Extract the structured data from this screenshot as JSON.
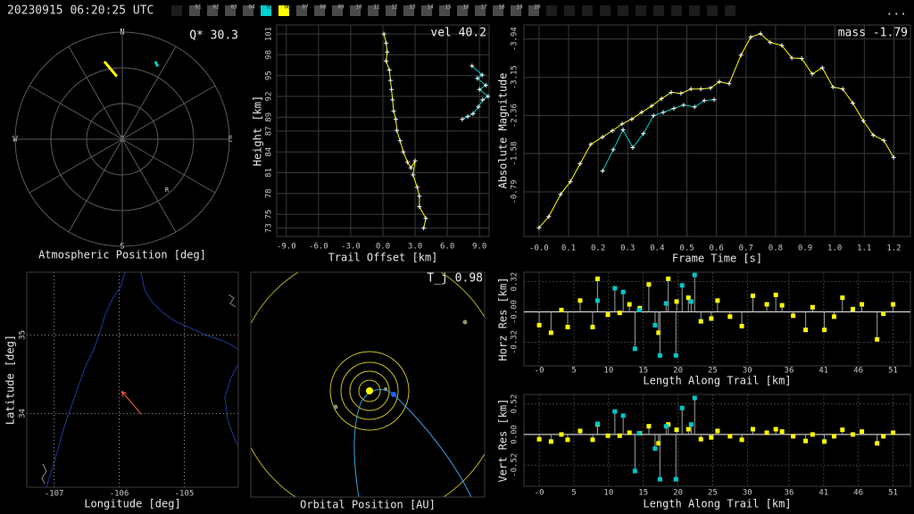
{
  "header": {
    "timestamp": "20230915 06:20:25 UTC",
    "menu": "...",
    "stations": [
      {
        "label": "01"
      },
      {
        "label": "02"
      },
      {
        "label": "03"
      },
      {
        "label": "04"
      },
      {
        "label": "05",
        "color": "#00d0d0"
      },
      {
        "label": "06",
        "color": "#ffff00"
      },
      {
        "label": "07"
      },
      {
        "label": "08"
      },
      {
        "label": "09"
      },
      {
        "label": "10"
      },
      {
        "label": "11"
      },
      {
        "label": "12"
      },
      {
        "label": "13"
      },
      {
        "label": "14"
      },
      {
        "label": "15"
      },
      {
        "label": "16"
      },
      {
        "label": "17"
      },
      {
        "label": "18"
      },
      {
        "label": "19"
      },
      {
        "label": "20"
      }
    ]
  },
  "chart_data": [
    {
      "type": "polar",
      "xlabel": "Atmospheric Position [deg]",
      "annotation": "Q* 30.3",
      "direction_labels": [
        "N",
        "E",
        "S",
        "W"
      ],
      "center_label": "Z",
      "marker_label": "R",
      "rlim": [
        0,
        90
      ],
      "rticks": [
        30,
        60,
        90
      ],
      "series": [
        {
          "color": "#ffff00",
          "azimuth": [
            347,
            355
          ],
          "zenith": [
            67,
            53
          ]
        },
        {
          "color": "#00d0d0",
          "azimuth": [
            23,
            26
          ],
          "zenith": [
            71,
            68
          ]
        }
      ]
    },
    {
      "type": "line",
      "annotation": "vel 40.2",
      "xlabel": "Trail Offset [km]",
      "ylabel": "Height [km]",
      "xlim": [
        -9.9,
        9.9
      ],
      "ylim": [
        71.8,
        102.3
      ],
      "xticks": [
        {
          "value": -9,
          "label": "-9.0"
        },
        {
          "value": -6,
          "label": "-6.0"
        },
        {
          "value": -3,
          "label": "-3.0"
        },
        {
          "value": 0,
          "label": "0.0"
        },
        {
          "value": 3,
          "label": "3.0"
        },
        {
          "value": 6,
          "label": "6.0"
        },
        {
          "value": 9,
          "label": "9.0"
        }
      ],
      "yticks": [
        73,
        75,
        78,
        81,
        84,
        87,
        89,
        92,
        95,
        98,
        101
      ],
      "series": [
        {
          "color": "#ffff00",
          "x": [
            0.1,
            0.3,
            0.4,
            0.3,
            0.6,
            0.7,
            0.8,
            0.9,
            1.0,
            1.2,
            1.3,
            1.6,
            1.9,
            2.3,
            2.6,
            3.0,
            2.8,
            3.2,
            3.4,
            3.4,
            4.0,
            3.8
          ],
          "values": [
            101.0,
            99.7,
            98.4,
            97.1,
            95.8,
            94.3,
            93.0,
            91.5,
            89.9,
            88.7,
            87.1,
            85.6,
            84.0,
            82.5,
            81.7,
            82.7,
            80.7,
            78.9,
            77.6,
            76.1,
            74.4,
            73.0
          ]
        },
        {
          "color": "#00d0d0",
          "x": [
            8.3,
            9.25,
            8.8,
            9.6,
            9.0,
            9.8,
            9.3,
            8.9,
            8.4,
            7.9,
            7.4
          ],
          "values": [
            96.4,
            95.1,
            94.6,
            93.6,
            93.0,
            92.0,
            91.5,
            90.5,
            89.5,
            89.1,
            88.7
          ]
        }
      ]
    },
    {
      "type": "line",
      "annotation": "mass -1.79",
      "xlabel": "Frame Time [s]",
      "ylabel": "Absolute Magnitude",
      "xlim": [
        -0.051,
        1.256
      ],
      "ylim": [
        0.13,
        -4.23
      ],
      "xticks": [
        {
          "value": 0,
          "label": "-0.0"
        },
        0.1,
        0.2,
        0.3,
        0.4,
        0.5,
        0.6,
        0.7,
        0.8,
        0.9,
        {
          "value": 1,
          "label": "1.0"
        },
        1.1,
        1.2
      ],
      "yticks": [
        -3.94,
        -3.15,
        -2.36,
        -1.58,
        -0.79
      ],
      "series": [
        {
          "color": "#ffff00",
          "x": [
            0,
            0.033,
            0.073,
            0.106,
            0.139,
            0.175,
            0.215,
            0.248,
            0.281,
            0.314,
            0.347,
            0.381,
            0.414,
            0.447,
            0.48,
            0.514,
            0.547,
            0.58,
            0.61,
            0.643,
            0.683,
            0.716,
            0.749,
            0.782,
            0.821,
            0.855,
            0.888,
            0.924,
            0.958,
            0.994,
            1.027,
            1.061,
            1.097,
            1.13,
            1.166,
            1.199
          ],
          "values": [
            -0.05,
            -0.28,
            -0.74,
            -1.0,
            -1.37,
            -1.77,
            -1.92,
            -2.05,
            -2.19,
            -2.29,
            -2.43,
            -2.56,
            -2.71,
            -2.84,
            -2.82,
            -2.91,
            -2.91,
            -2.93,
            -3.06,
            -3.02,
            -3.61,
            -3.98,
            -4.05,
            -3.87,
            -3.81,
            -3.55,
            -3.54,
            -3.22,
            -3.35,
            -2.95,
            -2.91,
            -2.62,
            -2.25,
            -1.96,
            -1.85,
            -1.5
          ]
        },
        {
          "color": "#00d0d0",
          "x": [
            0.215,
            0.251,
            0.284,
            0.317,
            0.353,
            0.387,
            0.42,
            0.456,
            0.489,
            0.526,
            0.559,
            0.592
          ],
          "values": [
            -1.22,
            -1.66,
            -2.07,
            -1.7,
            -1.99,
            -2.36,
            -2.43,
            -2.51,
            -2.58,
            -2.54,
            -2.67,
            -2.69
          ]
        }
      ]
    },
    {
      "type": "map",
      "xlabel": "Longitude [deg]",
      "ylabel": "Latitude [deg]",
      "xlim": [
        -107.42,
        -104.17
      ],
      "ylim": [
        33.06,
        35.8
      ],
      "xticks": [
        -107,
        -106,
        -105
      ],
      "yticks": [
        34,
        35
      ],
      "series": [
        {
          "color": "#ff6a40",
          "x": [
            -105.96,
            -105.66
          ],
          "values": [
            34.28,
            33.99
          ]
        }
      ]
    },
    {
      "type": "orbit",
      "xlabel": "Orbital Position [AU]",
      "annotation": "T_j 0.98"
    },
    {
      "type": "stem",
      "xlabel": "Length Along Trail [km]",
      "ylabel": "Horz Res [km]",
      "xlim": [
        -2.2,
        53.5
      ],
      "ylim": [
        -0.57,
        0.42
      ],
      "xticks": [
        {
          "value": 0,
          "label": "-0"
        },
        5,
        10,
        15,
        20,
        25,
        30,
        36,
        41,
        46,
        51
      ],
      "yticks": [
        0.32,
        {
          "value": 0,
          "label": "-0.00"
        },
        -0.32
      ],
      "series": [
        {
          "color": "#ffff00",
          "x": [
            0,
            1.7,
            3.2,
            4.1,
            5.9,
            7.7,
            8.4,
            9.9,
            11.6,
            13.0,
            14.5,
            15.8,
            17.2,
            18.6,
            19.8,
            21.5,
            23.3,
            24.8,
            25.7,
            27.5,
            29.2,
            30.8,
            32.8,
            34.1,
            35.0,
            36.6,
            38.4,
            39.4,
            41.1,
            42.5,
            43.7,
            45.2,
            46.5,
            48.7,
            49.6,
            51.0
          ],
          "values": [
            -0.14,
            -0.22,
            0.02,
            -0.16,
            0.12,
            -0.16,
            0.35,
            -0.03,
            -0.01,
            0.08,
            0.04,
            0.29,
            -0.22,
            0.35,
            0.11,
            0.15,
            -0.1,
            -0.07,
            0.12,
            -0.05,
            -0.15,
            0.17,
            0.08,
            0.18,
            0.07,
            -0.04,
            -0.19,
            0.05,
            -0.19,
            -0.05,
            0.15,
            0.03,
            0.08,
            -0.29,
            -0.02,
            0.08
          ]
        },
        {
          "color": "#00c8c8",
          "x": [
            8.4,
            10.9,
            12.1,
            13.8,
            14.4,
            16.7,
            17.4,
            18.3,
            19.7,
            20.6,
            21.9,
            22.4
          ],
          "values": [
            0.12,
            0.25,
            0.21,
            -0.39,
            0.02,
            -0.14,
            -0.46,
            0.09,
            -0.46,
            0.28,
            0.11,
            0.39
          ]
        }
      ]
    },
    {
      "type": "stem",
      "xlabel": "Length Along Trail [km]",
      "ylabel": "Vert Res [km]",
      "xlim": [
        -2.2,
        53.5
      ],
      "ylim": [
        -0.88,
        0.68
      ],
      "xticks": [
        {
          "value": 0,
          "label": "-0"
        },
        5,
        10,
        15,
        20,
        25,
        30,
        36,
        41,
        46,
        51
      ],
      "yticks": [
        0.52,
        {
          "value": 0,
          "label": "0.00"
        },
        -0.52
      ],
      "series": [
        {
          "color": "#ffff00",
          "x": [
            0,
            1.7,
            3.2,
            4.1,
            5.9,
            7.7,
            8.4,
            9.9,
            11.6,
            13.0,
            14.5,
            15.8,
            17.2,
            18.6,
            19.8,
            21.5,
            23.3,
            24.8,
            25.7,
            27.5,
            29.2,
            30.8,
            32.8,
            34.1,
            35.0,
            36.6,
            38.4,
            39.4,
            41.1,
            42.5,
            43.7,
            45.2,
            46.5,
            48.7,
            49.6,
            51.0
          ],
          "values": [
            -0.08,
            -0.12,
            0,
            -0.09,
            0.06,
            -0.09,
            0.17,
            -0.02,
            -0.02,
            0.03,
            0.02,
            0.14,
            -0.15,
            0.17,
            0.08,
            0.09,
            -0.08,
            -0.05,
            0.06,
            -0.03,
            -0.09,
            0.09,
            0.03,
            0.09,
            0.05,
            -0.03,
            -0.11,
            0,
            -0.12,
            -0.03,
            0.08,
            0,
            0.05,
            -0.15,
            -0.03,
            0.03
          ]
        },
        {
          "color": "#00c8c8",
          "x": [
            8.4,
            10.9,
            12.1,
            13.8,
            14.4,
            16.7,
            17.4,
            18.3,
            19.7,
            20.6,
            21.9,
            22.4
          ],
          "values": [
            0.18,
            0.39,
            0.32,
            -0.62,
            0.02,
            -0.24,
            -0.76,
            0.14,
            -0.76,
            0.45,
            0.17,
            0.62
          ]
        }
      ]
    }
  ]
}
